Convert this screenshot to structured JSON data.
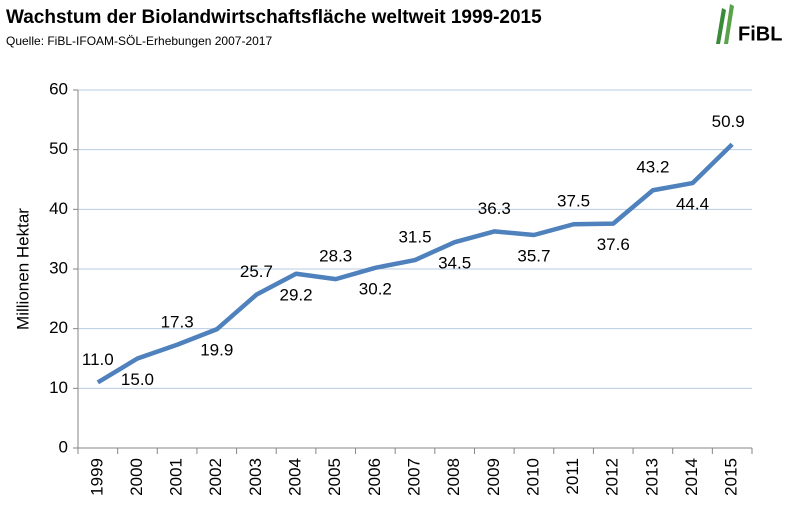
{
  "chart_data": {
    "type": "line",
    "title": "Wachstum der Biolandwirtschaftsfläche weltweit 1999-2015",
    "subtitle": "Quelle: FiBL-IFOAM-SÖL-Erhebungen 2007-2017",
    "logo_text": "FiBL",
    "y_label": "Millionen Hektar",
    "categories": [
      "1999",
      "2000",
      "2001",
      "2002",
      "2003",
      "2004",
      "2005",
      "2006",
      "2007",
      "2008",
      "2009",
      "2010",
      "2011",
      "2012",
      "2013",
      "2014",
      "2015"
    ],
    "series": [
      {
        "name": "Biolandwirtschaftsfläche",
        "color": "#4f81bd",
        "values": [
          11.0,
          15.0,
          17.3,
          19.9,
          25.7,
          29.2,
          28.3,
          30.2,
          31.5,
          34.5,
          36.3,
          35.7,
          37.5,
          37.6,
          43.2,
          44.4,
          50.9
        ],
        "value_labels": [
          "11.0",
          "15.0",
          "17.3",
          "19.9",
          "25.7",
          "29.2",
          "28.3",
          "30.2",
          "31.5",
          "34.5",
          "36.3",
          "35.7",
          "37.5",
          "37.6",
          "43.2",
          "44.4",
          "50.9"
        ]
      }
    ],
    "ylim": [
      0,
      60
    ],
    "yticks": [
      0,
      10,
      20,
      30,
      40,
      50,
      60
    ],
    "grid": true
  }
}
